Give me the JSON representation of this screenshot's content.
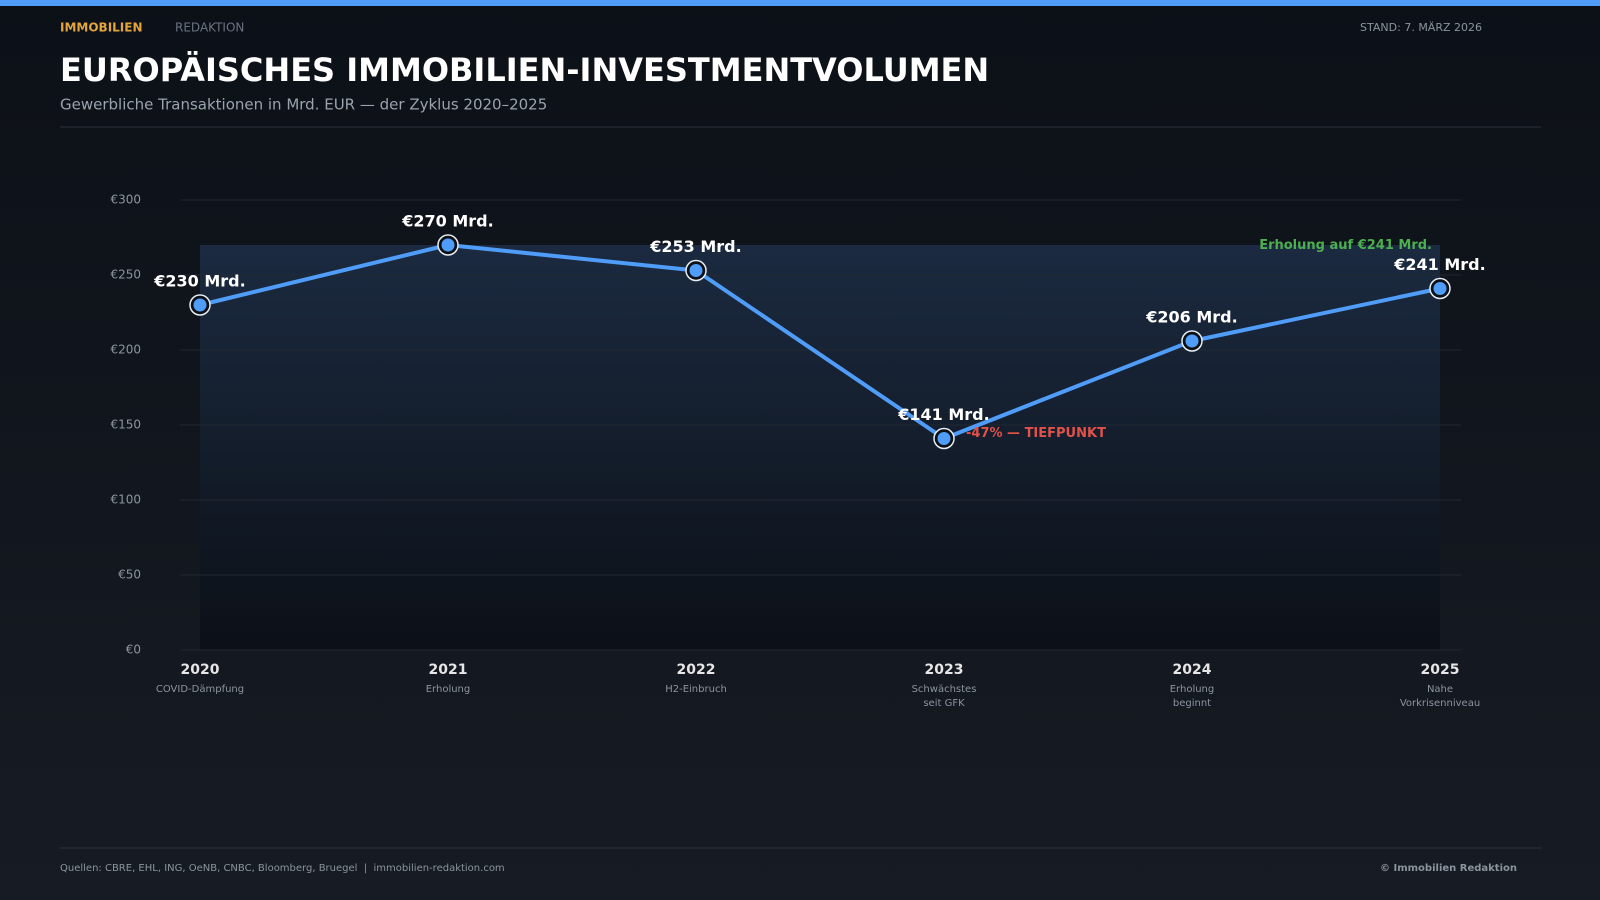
{
  "header": {
    "section": "IMMOBILIEN",
    "brand": "REDAKTION",
    "date": "STAND: 7. MÄRZ 2026"
  },
  "chart_data": {
    "type": "line",
    "title": "EUROPÄISCHES IMMOBILIEN-INVESTMENTVOLUMEN",
    "subtitle": "Gewerbliche Transaktionen in Mrd. EUR — der Zyklus 2020–2025",
    "categories": [
      "2020",
      "2021",
      "2022",
      "2023",
      "2024",
      "2025"
    ],
    "category_notes": [
      [
        "COVID-Dämpfung"
      ],
      [
        "Erholung"
      ],
      [
        "H2-Einbruch"
      ],
      [
        "Schwächstes",
        "seit GFK"
      ],
      [
        "Erholung",
        "beginnt"
      ],
      [
        "Nahe",
        "Vorkrisenniveau"
      ]
    ],
    "values": [
      230,
      270,
      253,
      141,
      206,
      241
    ],
    "value_labels": [
      "€230 Mrd.",
      "€270 Mrd.",
      "€253 Mrd.",
      "€141 Mrd.",
      "€206 Mrd.",
      "€241 Mrd."
    ],
    "color": "#4f9cf9",
    "ylim": [
      0,
      300
    ],
    "yticks": [
      {
        "value": 0,
        "label": "€0"
      },
      {
        "value": 50,
        "label": "€50"
      },
      {
        "value": 100,
        "label": "€100"
      },
      {
        "value": 150,
        "label": "€150"
      },
      {
        "value": 200,
        "label": "€200"
      },
      {
        "value": 250,
        "label": "€250"
      },
      {
        "value": 300,
        "label": "€300"
      }
    ],
    "grid": true,
    "annotations": [
      {
        "text": "-47% — TIEFPUNKT",
        "color": "#e0524a",
        "index": 3
      },
      {
        "text": "Erholung auf €241 Mrd.",
        "color": "#4caf50",
        "index": 5
      }
    ]
  },
  "footer": {
    "sources": "Quellen: CBRE, EHL, ING, OeNB, CNBC, Bloomberg, Bruegel  |  immobilien-redaktion.com",
    "copyright": "© Immobilien Redaktion"
  }
}
